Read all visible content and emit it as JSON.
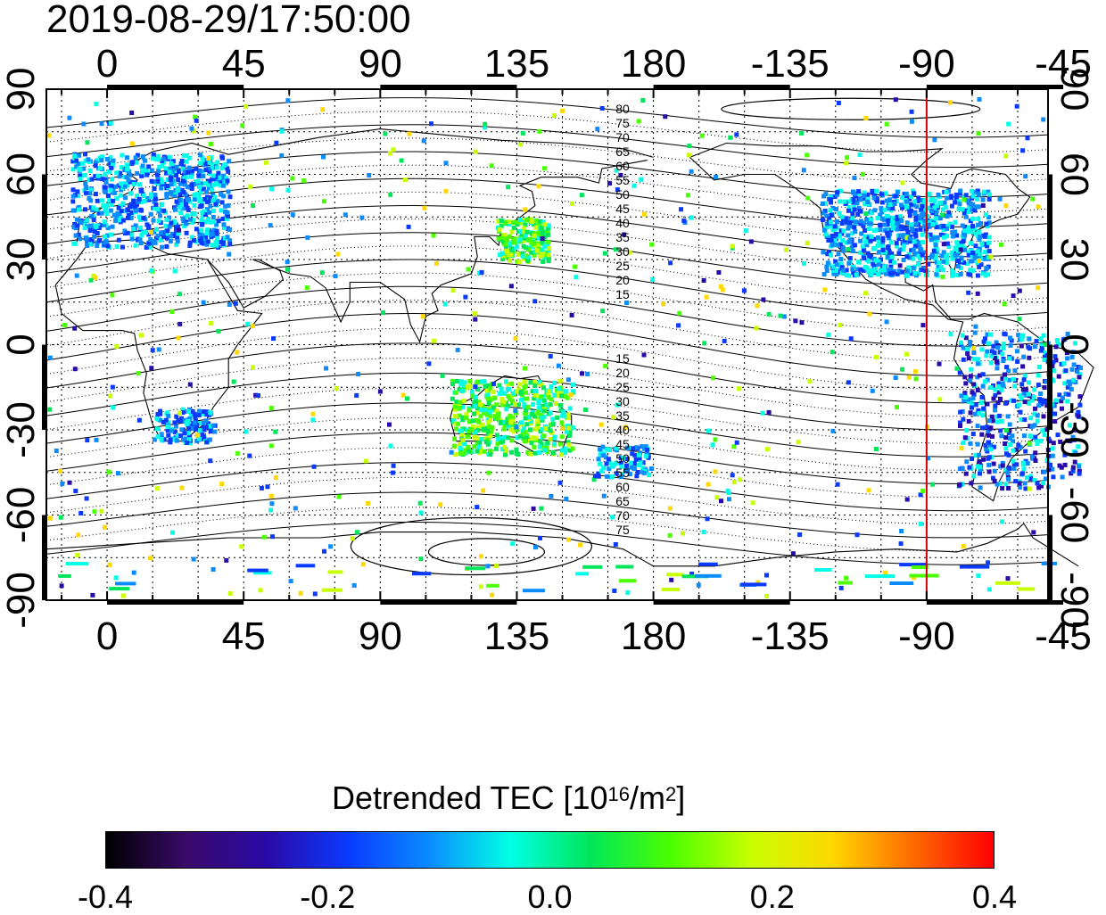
{
  "timestamp": "2019-08-29/17:50:00",
  "map": {
    "top_lon_labels": [
      "0",
      "45",
      "90",
      "135",
      "180",
      "-135",
      "-90",
      "-45"
    ],
    "bottom_lon_labels": [
      "0",
      "45",
      "90",
      "135",
      "180",
      "-135",
      "-90",
      "-45"
    ],
    "left_lat_labels": [
      "90",
      "60",
      "30",
      "0",
      "-30",
      "-60",
      "-90"
    ],
    "right_lat_labels": [
      "90",
      "60",
      "30",
      "0",
      "-30",
      "-60",
      "-90"
    ],
    "contour_labels_north": [
      "80",
      "75",
      "70",
      "65",
      "60",
      "55",
      "50",
      "45",
      "40",
      "35",
      "30",
      "25",
      "20",
      "15"
    ],
    "contour_labels_south": [
      "15",
      "20",
      "25",
      "30",
      "35",
      "40",
      "45",
      "50",
      "55",
      "60",
      "65",
      "70",
      "75"
    ],
    "marker_line_lon": -90,
    "marker_line_color": "#cc0000",
    "lon_range": [
      -20,
      310
    ],
    "lat_range": [
      -90,
      90
    ],
    "grid": true
  },
  "colorbar": {
    "title": "Detrended TEC  [10",
    "title_sup": "16",
    "title_unit": "/m",
    "title_sup2": "2",
    "title_end": "]",
    "ticks": [
      "-0.4",
      "-0.2",
      "0.0",
      "0.2",
      "0.4"
    ],
    "range": [
      -0.4,
      0.4
    ],
    "colormap": [
      "#000000",
      "#3a0a6a",
      "#2a0aa8",
      "#0a3aff",
      "#0a8cff",
      "#00ffe6",
      "#00e65a",
      "#4aff00",
      "#c8ff00",
      "#ffd800",
      "#ff6a00",
      "#ff0000"
    ]
  }
}
